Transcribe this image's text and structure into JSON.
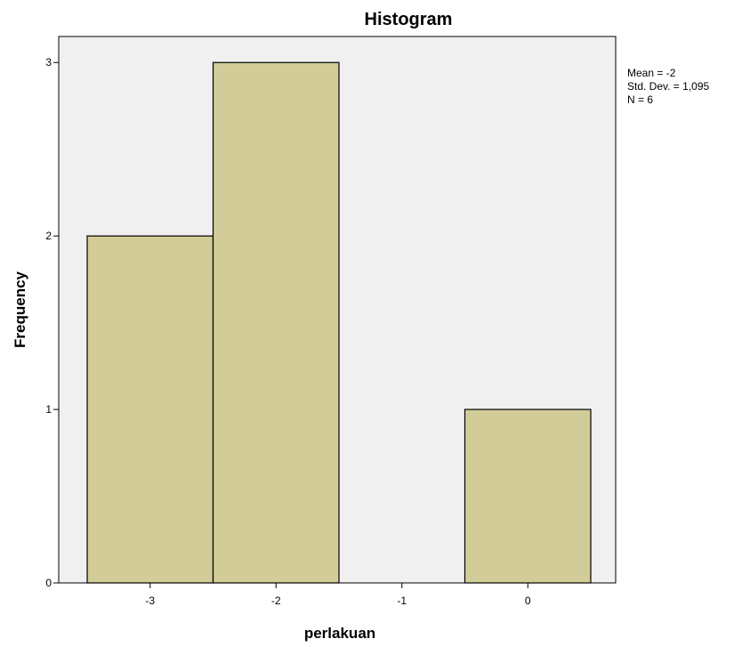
{
  "chart_data": {
    "type": "bar",
    "title": "Histogram",
    "xlabel": "perlakuan",
    "ylabel": "Frequency",
    "categories": [
      "-3",
      "-2",
      "-1",
      "0"
    ],
    "values": [
      2,
      3,
      0,
      1
    ],
    "ylim": [
      0,
      3.15
    ],
    "yticks": [
      "0",
      "1",
      "2",
      "3"
    ],
    "grid": false,
    "legend": "none",
    "stats": {
      "mean": "Mean = -2",
      "std_dev": "Std. Dev. = 1,095",
      "n": "N = 6"
    },
    "colors": {
      "bar_fill": "#d2cc98",
      "bar_stroke": "#000000",
      "plot_background": "#f0f0f0"
    }
  }
}
